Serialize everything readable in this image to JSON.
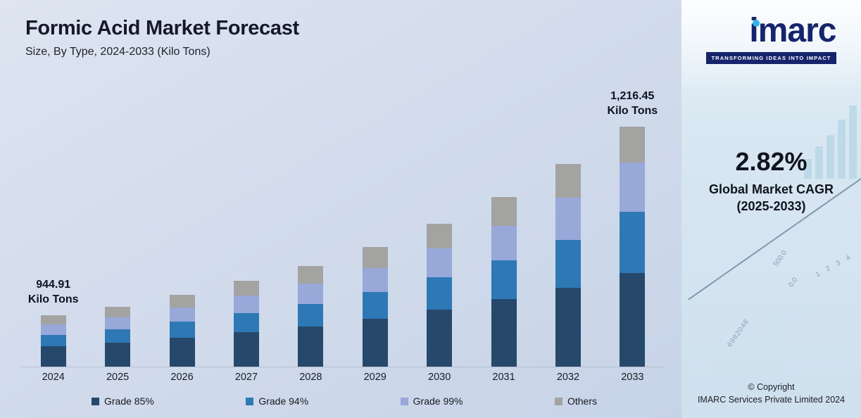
{
  "title": "Formic Acid Market Forecast",
  "subtitle": "Size, By Type, 2024-2033 (Kilo Tons)",
  "annotations": {
    "start": {
      "value": "944.91",
      "unit": "Kilo Tons"
    },
    "end": {
      "value": "1,216.45",
      "unit": "Kilo Tons"
    }
  },
  "chart_data": {
    "type": "bar",
    "stacked": true,
    "title": "Formic Acid Market Forecast",
    "subtitle": "Size, By Type, 2024-2033 (Kilo Tons)",
    "unit": "Kilo Tons",
    "note": "Bars are illustrative (not to numeric scale); values below are relative visual heights. Labeled totals: 2024 = 944.91 Kilo Tons, 2033 = 1,216.45 Kilo Tons.",
    "total_2024": "944.91",
    "total_2033": "1,216.45",
    "categories": [
      "2024",
      "2025",
      "2026",
      "2027",
      "2028",
      "2029",
      "2030",
      "2031",
      "2032",
      "2033"
    ],
    "series": [
      {
        "name": "Grade 85%",
        "color": "#26486b",
        "values": [
          29,
          34,
          41,
          49,
          57,
          68,
          81,
          96,
          112,
          133
        ]
      },
      {
        "name": "Grade 94%",
        "color": "#2e78b5",
        "values": [
          16,
          19,
          23,
          27,
          32,
          38,
          46,
          55,
          68,
          87
        ]
      },
      {
        "name": "Grade 99%",
        "color": "#97a8d9",
        "values": [
          15,
          17,
          20,
          25,
          29,
          34,
          41,
          49,
          60,
          70
        ]
      },
      {
        "name": "Others",
        "color": "#a3a3a1",
        "values": [
          13,
          15,
          18,
          21,
          25,
          30,
          35,
          41,
          48,
          51
        ]
      }
    ],
    "legend_position": "bottom",
    "grid": false
  },
  "side_panel": {
    "logo_text": "imarc",
    "tagline": "TRANSFORMING IDEAS INTO IMPACT",
    "cagr_value": "2.82%",
    "cagr_label_line1": "Global Market CAGR",
    "cagr_label_line2": "(2025-2033)",
    "copyright_line1": "© Copyright",
    "copyright_line2": "IMARC Services Private Limited 2024",
    "decorative_numbers": [
      "500.0",
      "0.0",
      "1 2 3 4",
      "6982048"
    ]
  }
}
